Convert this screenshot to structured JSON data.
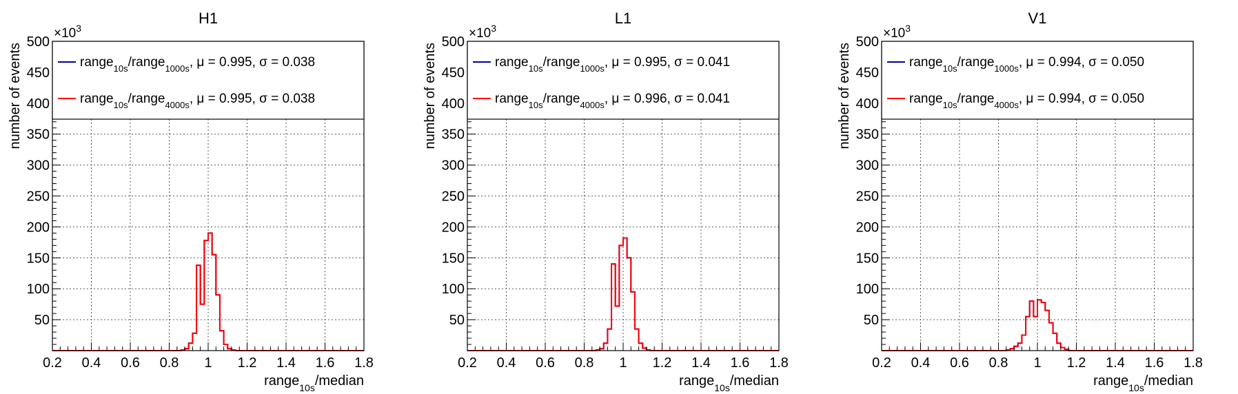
{
  "chart_data": [
    {
      "type": "histogram",
      "title": "H1",
      "xlabel": {
        "main": "range",
        "sub": "10s",
        "tail": "/median"
      },
      "ylabel": "number of events",
      "y_multiplier": {
        "base": "×10",
        "exp": "3"
      },
      "xlim": [
        0.2,
        1.8
      ],
      "ylim": [
        0,
        500
      ],
      "x_ticks": [
        "0.2",
        "0.4",
        "0.6",
        "0.8",
        "1",
        "1.2",
        "1.4",
        "1.6",
        "1.8"
      ],
      "y_ticks": [
        "50",
        "100",
        "150",
        "200",
        "250",
        "300",
        "350",
        "400",
        "450",
        "500"
      ],
      "grid": true,
      "legend_placement": "top",
      "legend": [
        {
          "color": "#000099",
          "num_main": "range",
          "num_sub": "10s",
          "den_main": "/range",
          "den_sub": "1000s",
          "stats": ", μ = 0.995, σ = 0.038"
        },
        {
          "color": "#ff0000",
          "num_main": "range",
          "num_sub": "10s",
          "den_main": "/range",
          "den_sub": "4000s",
          "stats": ", μ = 0.995, σ = 0.038"
        }
      ],
      "bin_width": 0.02,
      "series": [
        {
          "name": "range10s/range1000s",
          "color": "#000099",
          "values": [
            [
              0.86,
              1
            ],
            [
              0.88,
              3
            ],
            [
              0.9,
              12
            ],
            [
              0.92,
              28
            ],
            [
              0.94,
              138
            ],
            [
              0.96,
              75
            ],
            [
              0.98,
              178
            ],
            [
              1.0,
              190
            ],
            [
              1.02,
              155
            ],
            [
              1.04,
              90
            ],
            [
              1.06,
              32
            ],
            [
              1.08,
              10
            ],
            [
              1.1,
              3
            ],
            [
              1.12,
              1
            ]
          ]
        },
        {
          "name": "range10s/range4000s",
          "color": "#ff0000",
          "values": [
            [
              0.86,
              1
            ],
            [
              0.88,
              3
            ],
            [
              0.9,
              12
            ],
            [
              0.92,
              28
            ],
            [
              0.94,
              138
            ],
            [
              0.96,
              75
            ],
            [
              0.98,
              178
            ],
            [
              1.0,
              190
            ],
            [
              1.02,
              155
            ],
            [
              1.04,
              90
            ],
            [
              1.06,
              32
            ],
            [
              1.08,
              10
            ],
            [
              1.1,
              3
            ],
            [
              1.12,
              1
            ]
          ]
        }
      ]
    },
    {
      "type": "histogram",
      "title": "L1",
      "xlabel": {
        "main": "range",
        "sub": "10s",
        "tail": "/median"
      },
      "ylabel": "number of events",
      "y_multiplier": {
        "base": "×10",
        "exp": "3"
      },
      "xlim": [
        0.2,
        1.8
      ],
      "ylim": [
        0,
        500
      ],
      "x_ticks": [
        "0.2",
        "0.4",
        "0.6",
        "0.8",
        "1",
        "1.2",
        "1.4",
        "1.6",
        "1.8"
      ],
      "y_ticks": [
        "50",
        "100",
        "150",
        "200",
        "250",
        "300",
        "350",
        "400",
        "450",
        "500"
      ],
      "grid": true,
      "legend_placement": "top",
      "legend": [
        {
          "color": "#000099",
          "num_main": "range",
          "num_sub": "10s",
          "den_main": "/range",
          "den_sub": "1000s",
          "stats": ", μ = 0.995, σ = 0.041"
        },
        {
          "color": "#ff0000",
          "num_main": "range",
          "num_sub": "10s",
          "den_main": "/range",
          "den_sub": "4000s",
          "stats": ", μ = 0.996, σ = 0.041"
        }
      ],
      "bin_width": 0.02,
      "series": [
        {
          "name": "range10s/range1000s",
          "color": "#000099",
          "values": [
            [
              0.86,
              1
            ],
            [
              0.88,
              3
            ],
            [
              0.9,
              12
            ],
            [
              0.92,
              35
            ],
            [
              0.94,
              140
            ],
            [
              0.96,
              72
            ],
            [
              0.98,
              170
            ],
            [
              1.0,
              182
            ],
            [
              1.02,
              150
            ],
            [
              1.04,
              95
            ],
            [
              1.06,
              35
            ],
            [
              1.08,
              12
            ],
            [
              1.1,
              4
            ],
            [
              1.12,
              1
            ]
          ]
        },
        {
          "name": "range10s/range4000s",
          "color": "#ff0000",
          "values": [
            [
              0.86,
              1
            ],
            [
              0.88,
              3
            ],
            [
              0.9,
              12
            ],
            [
              0.92,
              35
            ],
            [
              0.94,
              140
            ],
            [
              0.96,
              72
            ],
            [
              0.98,
              170
            ],
            [
              1.0,
              182
            ],
            [
              1.02,
              150
            ],
            [
              1.04,
              95
            ],
            [
              1.06,
              35
            ],
            [
              1.08,
              12
            ],
            [
              1.1,
              4
            ],
            [
              1.12,
              1
            ]
          ]
        }
      ]
    },
    {
      "type": "histogram",
      "title": "V1",
      "xlabel": {
        "main": "range",
        "sub": "10s",
        "tail": "/median"
      },
      "ylabel": "number of events",
      "y_multiplier": {
        "base": "×10",
        "exp": "3"
      },
      "xlim": [
        0.2,
        1.8
      ],
      "ylim": [
        0,
        500
      ],
      "x_ticks": [
        "0.2",
        "0.4",
        "0.6",
        "0.8",
        "1",
        "1.2",
        "1.4",
        "1.6",
        "1.8"
      ],
      "y_ticks": [
        "50",
        "100",
        "150",
        "200",
        "250",
        "300",
        "350",
        "400",
        "450",
        "500"
      ],
      "grid": true,
      "legend_placement": "top",
      "legend": [
        {
          "color": "#000099",
          "num_main": "range",
          "num_sub": "10s",
          "den_main": "/range",
          "den_sub": "1000s",
          "stats": ", μ = 0.994, σ = 0.050"
        },
        {
          "color": "#ff0000",
          "num_main": "range",
          "num_sub": "10s",
          "den_main": "/range",
          "den_sub": "4000s",
          "stats": ", μ = 0.994, σ = 0.050"
        }
      ],
      "bin_width": 0.02,
      "series": [
        {
          "name": "range10s/range1000s",
          "color": "#000099",
          "values": [
            [
              0.84,
              1
            ],
            [
              0.86,
              3
            ],
            [
              0.88,
              7
            ],
            [
              0.9,
              12
            ],
            [
              0.92,
              25
            ],
            [
              0.94,
              55
            ],
            [
              0.96,
              80
            ],
            [
              0.98,
              55
            ],
            [
              1.0,
              82
            ],
            [
              1.02,
              78
            ],
            [
              1.04,
              65
            ],
            [
              1.06,
              45
            ],
            [
              1.08,
              28
            ],
            [
              1.1,
              12
            ],
            [
              1.12,
              5
            ],
            [
              1.14,
              2
            ]
          ]
        },
        {
          "name": "range10s/range4000s",
          "color": "#ff0000",
          "values": [
            [
              0.84,
              1
            ],
            [
              0.86,
              3
            ],
            [
              0.88,
              7
            ],
            [
              0.9,
              12
            ],
            [
              0.92,
              25
            ],
            [
              0.94,
              55
            ],
            [
              0.96,
              80
            ],
            [
              0.98,
              55
            ],
            [
              1.0,
              82
            ],
            [
              1.02,
              78
            ],
            [
              1.04,
              65
            ],
            [
              1.06,
              45
            ],
            [
              1.08,
              28
            ],
            [
              1.1,
              12
            ],
            [
              1.12,
              5
            ],
            [
              1.14,
              2
            ]
          ]
        }
      ]
    }
  ]
}
